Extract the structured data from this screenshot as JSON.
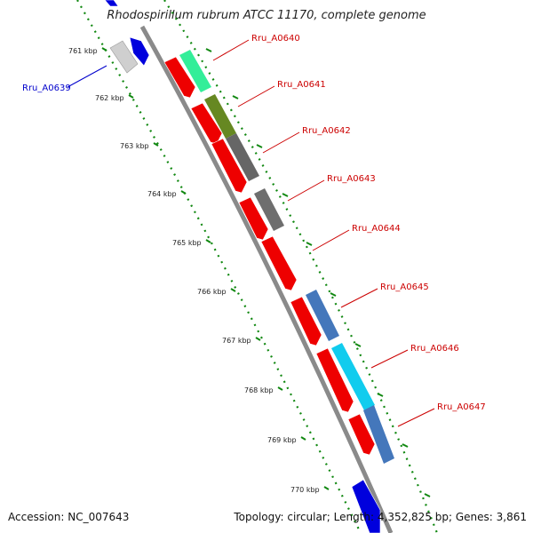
{
  "title": "Rhodospirillum rubrum ATCC 11170, complete genome",
  "accession": "Accession: NC_007643",
  "topology": "Topology: circular; Length: 4,352,825 bp; Genes: 3,861",
  "colors": {
    "backbone": "#8a8a8a",
    "tick_green": "#118811",
    "label_red": "#cc0000",
    "label_blue": "#0000cc"
  },
  "scale_labels": [
    "761 kbp",
    "762 kbp",
    "763 kbp",
    "764 kbp",
    "765 kbp",
    "766 kbp",
    "767 kbp",
    "768 kbp",
    "769 kbp",
    "770 kbp"
  ],
  "gene_labels": [
    {
      "text": "Rru_A0639",
      "color": "#0000cc"
    },
    {
      "text": "Rru_A0640",
      "color": "#cc0000"
    },
    {
      "text": "Rru_A0641",
      "color": "#cc0000"
    },
    {
      "text": "Rru_A0642",
      "color": "#cc0000"
    },
    {
      "text": "Rru_A0643",
      "color": "#cc0000"
    },
    {
      "text": "Rru_A0644",
      "color": "#cc0000"
    },
    {
      "text": "Rru_A0645",
      "color": "#cc0000"
    },
    {
      "text": "Rru_A0646",
      "color": "#cc0000"
    },
    {
      "text": "Rru_A0647",
      "color": "#cc0000"
    }
  ],
  "genes": [
    {
      "name": "Rru_A0639",
      "strand": "forward",
      "color": "#0000dd"
    },
    {
      "name": "Rru_A0639-partner",
      "strand": "reverse",
      "color": "#0000dd"
    },
    {
      "name": "Rru_A0640",
      "strand": "forward",
      "color": "#ee0000"
    },
    {
      "name": "Rru_A0641",
      "strand": "forward",
      "color": "#ee0000"
    },
    {
      "name": "Rru_A0642",
      "strand": "forward",
      "color": "#ee0000"
    },
    {
      "name": "Rru_A0643",
      "strand": "forward",
      "color": "#ee0000"
    },
    {
      "name": "Rru_A0644",
      "strand": "forward",
      "color": "#ee0000"
    },
    {
      "name": "Rru_A0645",
      "strand": "forward",
      "color": "#ee0000"
    },
    {
      "name": "Rru_A0646",
      "strand": "forward",
      "color": "#ee0000"
    },
    {
      "name": "Rru_A0647",
      "strand": "forward",
      "color": "#ee0000"
    },
    {
      "name": "next-gene",
      "strand": "forward",
      "color": "#0000dd"
    }
  ],
  "feature_bars": [
    {
      "name": "cog-aqua",
      "color": "#33ee99"
    },
    {
      "name": "cog-olive",
      "color": "#668822"
    },
    {
      "name": "cog-gray-1",
      "color": "#666666"
    },
    {
      "name": "cog-gray-2",
      "color": "#6e6e6e"
    },
    {
      "name": "cog-steel-1",
      "color": "#4477bb"
    },
    {
      "name": "cog-cyan",
      "color": "#11ccee"
    },
    {
      "name": "cog-steel-2",
      "color": "#4477bb"
    }
  ]
}
